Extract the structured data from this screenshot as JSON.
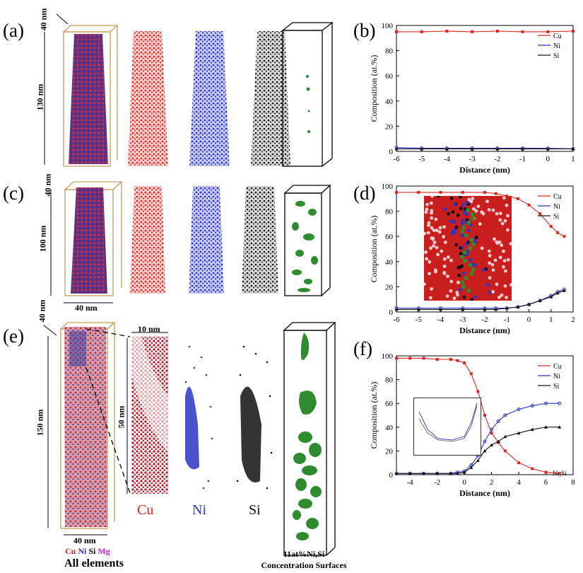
{
  "panels": {
    "a": "(a)",
    "b": "(b)",
    "c": "(c)",
    "d": "(d)",
    "e": "(e)",
    "f": "(f)"
  },
  "dimensions": {
    "a_width": "40 nm",
    "a_height": "130 nm",
    "c_width": "40 nm",
    "c_depth": "40 nm",
    "c_height": "100 nm",
    "e_depth": "40 nm",
    "e_width": "40 nm",
    "e_height": "150 nm",
    "e_zoom_width": "10 nm",
    "e_zoom_height": "50 nm"
  },
  "element_labels": {
    "cu": "Cu",
    "ni": "Ni",
    "si": "Si",
    "mg": "Mg"
  },
  "captions": {
    "all_elements": "All elements",
    "iso_line1": "11at%Ni,Si",
    "iso_line2": "Concentration Surfaces",
    "ni2si": "Ni₂Si"
  },
  "colors": {
    "cu": "#e0251f",
    "ni": "#2a34c8",
    "si": "#111111",
    "mg": "#cc22cc",
    "iso": "#2e8b2e",
    "box": "#c79a5b"
  },
  "chart_data": [
    {
      "panel": "b",
      "type": "line",
      "xlabel": "Distance (nm)",
      "ylabel": "Composition (at.%)",
      "xlim": [
        -6,
        1
      ],
      "ylim": [
        0,
        100
      ],
      "xticks": [
        -6,
        -5,
        -4,
        -3,
        -2,
        -1,
        0,
        1
      ],
      "yticks": [
        0,
        20,
        40,
        60,
        80,
        100
      ],
      "legend": "top-right",
      "series": [
        {
          "name": "Cu",
          "x": [
            -6,
            -5,
            -4,
            -3,
            -2,
            -1,
            0,
            1
          ],
          "y": [
            95,
            95,
            95.5,
            95,
            95.5,
            95,
            95,
            95.5
          ]
        },
        {
          "name": "Ni",
          "x": [
            -6,
            -5,
            -4,
            -3,
            -2,
            -1,
            0,
            1
          ],
          "y": [
            3,
            2.5,
            2.5,
            2.5,
            2.5,
            2.5,
            2.5,
            2
          ]
        },
        {
          "name": "Si",
          "x": [
            -6,
            -5,
            -4,
            -3,
            -2,
            -1,
            0,
            1
          ],
          "y": [
            2,
            2,
            2,
            2,
            2,
            2,
            2,
            2
          ]
        }
      ]
    },
    {
      "panel": "d",
      "type": "line",
      "xlabel": "Distance (nm)",
      "ylabel": "Composition (at.%)",
      "xlim": [
        -6,
        2
      ],
      "ylim": [
        0,
        100
      ],
      "xticks": [
        -6,
        -5,
        -4,
        -3,
        -2,
        -1,
        0,
        1,
        2
      ],
      "yticks": [
        0,
        20,
        40,
        60,
        80,
        100
      ],
      "legend": "top-right",
      "series": [
        {
          "name": "Cu",
          "x": [
            -6,
            -5,
            -4,
            -3,
            -2,
            -1.5,
            -1,
            -0.5,
            0,
            0.5,
            1,
            1.3,
            1.6
          ],
          "y": [
            95,
            95,
            95,
            95,
            95,
            94,
            92,
            90,
            85,
            78,
            68,
            63,
            60
          ]
        },
        {
          "name": "Ni",
          "x": [
            -6,
            -5,
            -4,
            -3,
            -2,
            -1.5,
            -1,
            -0.5,
            0,
            0.5,
            1,
            1.3,
            1.6
          ],
          "y": [
            3,
            3,
            3,
            3,
            3,
            3,
            3,
            4,
            6,
            9,
            13,
            16,
            18
          ]
        },
        {
          "name": "Si",
          "x": [
            -6,
            -5,
            -4,
            -3,
            -2,
            -1.5,
            -1,
            -0.5,
            0,
            0.5,
            1,
            1.3,
            1.6
          ],
          "y": [
            2,
            2,
            2,
            2,
            2,
            2,
            3,
            4,
            6,
            9,
            12,
            15,
            17
          ]
        }
      ]
    },
    {
      "panel": "f",
      "type": "line",
      "xlabel": "Distance (nm)",
      "ylabel": "Composition (at.%)",
      "xlim": [
        -5,
        8
      ],
      "ylim": [
        0,
        100
      ],
      "xticks": [
        -4,
        -2,
        0,
        2,
        4,
        6,
        8
      ],
      "yticks": [
        0,
        20,
        40,
        60,
        80,
        100
      ],
      "legend": "top-right",
      "series": [
        {
          "name": "Cu",
          "x": [
            -5,
            -4,
            -3,
            -2,
            -1,
            -0.5,
            0,
            0.5,
            1,
            1.5,
            2,
            2.5,
            3,
            4,
            5,
            6,
            7
          ],
          "y": [
            98,
            98,
            98,
            97,
            97,
            96,
            94,
            85,
            70,
            50,
            35,
            27,
            20,
            10,
            5,
            2,
            1
          ]
        },
        {
          "name": "Ni",
          "x": [
            -5,
            -4,
            -3,
            -2,
            -1,
            -0.5,
            0,
            0.5,
            1,
            1.5,
            2,
            2.5,
            3,
            4,
            5,
            6,
            7
          ],
          "y": [
            1,
            1,
            1,
            1,
            1,
            2,
            3,
            8,
            16,
            28,
            38,
            45,
            50,
            55,
            58,
            60,
            60
          ]
        },
        {
          "name": "Si",
          "x": [
            -5,
            -4,
            -3,
            -2,
            -1,
            -0.5,
            0,
            0.5,
            1,
            1.5,
            2,
            2.5,
            3,
            4,
            5,
            6,
            7
          ],
          "y": [
            1,
            1,
            1,
            1,
            1,
            1,
            2,
            6,
            12,
            20,
            25,
            28,
            32,
            35,
            38,
            40,
            40
          ]
        }
      ]
    }
  ]
}
